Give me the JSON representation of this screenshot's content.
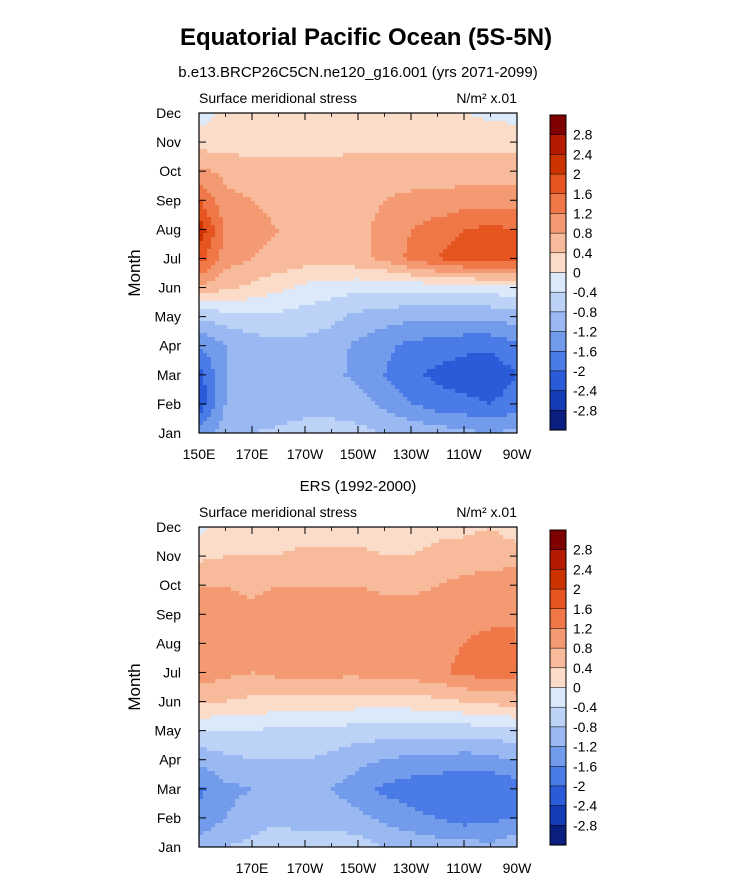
{
  "figure": {
    "title": "Equatorial Pacific Ocean (5S-5N)"
  },
  "colorbar": {
    "levels": [
      "2.8",
      "2.4",
      "2",
      "1.6",
      "1.2",
      "0.8",
      "0.4",
      "0",
      "-0.4",
      "-0.8",
      "-1.2",
      "-1.6",
      "-2",
      "-2.4",
      "-2.8"
    ],
    "colors": [
      "#7f0000",
      "#b31a00",
      "#cc3300",
      "#e6551f",
      "#f07848",
      "#f39a72",
      "#f7bb9c",
      "#fbdcc8",
      "#dbe9fb",
      "#bcd3f7",
      "#9ab8f2",
      "#729bec",
      "#4a7be6",
      "#2a5bd8",
      "#153cb8",
      "#0a1f80"
    ]
  },
  "chart_data": [
    {
      "type": "heatmap",
      "title": "b.e13.BRCP26C5CN.ne120_g16.001 (yrs 2071-2099)",
      "left_label": "Surface meridional stress",
      "units_label": "N/m² x.01",
      "ylabel": "Month",
      "xlabel": "",
      "xticks": [
        "150E",
        "170E",
        "170W",
        "150W",
        "130W",
        "110W",
        "90W"
      ],
      "x": [
        150,
        160,
        170,
        180,
        190,
        200,
        210,
        220,
        230,
        240,
        250,
        260,
        270
      ],
      "y": [
        "Jan",
        "Feb",
        "Mar",
        "Apr",
        "May",
        "Jun",
        "Jul",
        "Aug",
        "Sep",
        "Oct",
        "Nov",
        "Dec"
      ],
      "z": [
        [
          -1.4,
          -1.0,
          -0.8,
          -0.7,
          -0.6,
          -0.6,
          -0.7,
          -0.8,
          -0.9,
          -1.0,
          -1.1,
          -1.2,
          -1.1
        ],
        [
          -2.3,
          -1.2,
          -1.2,
          -1.1,
          -1.0,
          -1.0,
          -1.0,
          -1.3,
          -1.6,
          -1.8,
          -1.9,
          -2.0,
          -1.8
        ],
        [
          -2.2,
          -1.2,
          -1.1,
          -1.1,
          -1.0,
          -1.1,
          -1.3,
          -1.6,
          -1.9,
          -2.1,
          -2.2,
          -2.3,
          -2.0
        ],
        [
          -1.6,
          -1.2,
          -1.0,
          -0.9,
          -0.9,
          -1.0,
          -1.3,
          -1.5,
          -1.7,
          -1.8,
          -1.9,
          -1.9,
          -1.7
        ],
        [
          -0.7,
          -0.6,
          -0.5,
          -0.5,
          -0.6,
          -0.7,
          -0.9,
          -1.0,
          -1.1,
          -1.1,
          -1.1,
          -1.1,
          -1.0
        ],
        [
          0.7,
          0.5,
          0.3,
          0.1,
          -0.1,
          -0.2,
          -0.3,
          -0.3,
          -0.3,
          -0.2,
          -0.2,
          -0.2,
          -0.1
        ],
        [
          1.8,
          1.0,
          0.8,
          0.7,
          0.6,
          0.6,
          0.7,
          0.9,
          1.3,
          1.6,
          1.8,
          1.9,
          1.8
        ],
        [
          2.3,
          1.1,
          0.9,
          0.8,
          0.7,
          0.7,
          0.7,
          0.9,
          1.2,
          1.4,
          1.6,
          1.7,
          1.6
        ],
        [
          1.6,
          0.9,
          0.8,
          0.7,
          0.7,
          0.7,
          0.7,
          0.8,
          0.9,
          0.9,
          1.0,
          1.0,
          1.0
        ],
        [
          0.9,
          0.7,
          0.6,
          0.6,
          0.6,
          0.6,
          0.6,
          0.6,
          0.6,
          0.6,
          0.6,
          0.6,
          0.6
        ],
        [
          0.2,
          0.2,
          0.2,
          0.2,
          0.2,
          0.2,
          0.3,
          0.3,
          0.3,
          0.3,
          0.3,
          0.3,
          0.3
        ],
        [
          -0.2,
          0.1,
          0.1,
          0.1,
          0.1,
          0.1,
          0.1,
          0.1,
          0.1,
          0.1,
          0.0,
          -0.1,
          -0.2
        ]
      ],
      "zlim": [
        -3.2,
        3.2
      ],
      "grid": false
    },
    {
      "type": "heatmap",
      "title": "ERS (1992-2000)",
      "left_label": "Surface meridional stress",
      "units_label": "N/m² x.01",
      "ylabel": "Month",
      "xlabel": "",
      "xticks": [
        "170E",
        "170W",
        "150W",
        "130W",
        "110W",
        "90W"
      ],
      "x": [
        150,
        160,
        170,
        180,
        190,
        200,
        210,
        220,
        230,
        240,
        250,
        260,
        270
      ],
      "y": [
        "Jan",
        "Feb",
        "Mar",
        "Apr",
        "May",
        "Jun",
        "Jul",
        "Aug",
        "Sep",
        "Oct",
        "Nov",
        "Dec"
      ],
      "z": [
        [
          -1.0,
          -0.8,
          -0.7,
          -0.5,
          -0.6,
          -0.5,
          -0.6,
          -0.8,
          -0.9,
          -1.0,
          -1.0,
          -1.1,
          -0.9
        ],
        [
          -1.5,
          -1.2,
          -1.0,
          -0.9,
          -1.0,
          -1.0,
          -1.1,
          -1.3,
          -1.5,
          -1.6,
          -1.8,
          -1.7,
          -1.6
        ],
        [
          -1.7,
          -1.3,
          -1.2,
          -1.1,
          -1.1,
          -1.2,
          -1.4,
          -1.7,
          -1.8,
          -1.9,
          -2.0,
          -2.0,
          -1.8
        ],
        [
          -1.1,
          -0.9,
          -0.8,
          -0.8,
          -0.8,
          -0.9,
          -1.1,
          -1.2,
          -1.3,
          -1.3,
          -1.4,
          -1.3,
          -1.2
        ],
        [
          -0.4,
          -0.4,
          -0.4,
          -0.5,
          -0.5,
          -0.5,
          -0.6,
          -0.6,
          -0.6,
          -0.6,
          -0.6,
          -0.6,
          -0.5
        ],
        [
          0.5,
          0.4,
          0.3,
          0.3,
          0.3,
          0.3,
          0.2,
          0.2,
          0.2,
          0.3,
          0.4,
          0.5,
          0.6
        ],
        [
          1.0,
          0.9,
          0.8,
          0.9,
          0.9,
          0.9,
          0.9,
          1.0,
          1.0,
          1.1,
          1.3,
          1.4,
          1.3
        ],
        [
          1.1,
          0.9,
          0.9,
          1.0,
          1.1,
          1.1,
          1.1,
          1.1,
          1.1,
          1.1,
          1.2,
          1.3,
          1.2
        ],
        [
          1.2,
          1.0,
          0.9,
          1.0,
          1.1,
          1.1,
          1.0,
          1.0,
          1.0,
          1.0,
          1.1,
          1.1,
          1.2
        ],
        [
          0.8,
          0.8,
          0.7,
          0.8,
          0.8,
          0.8,
          0.8,
          0.7,
          0.7,
          0.8,
          0.9,
          1.0,
          1.1
        ],
        [
          0.3,
          0.4,
          0.4,
          0.4,
          0.5,
          0.5,
          0.5,
          0.4,
          0.4,
          0.5,
          0.6,
          0.6,
          0.6
        ],
        [
          -0.1,
          0.1,
          0.1,
          0.2,
          0.2,
          0.2,
          0.2,
          0.2,
          0.2,
          0.3,
          0.3,
          0.4,
          0.2
        ]
      ],
      "zlim": [
        -3.2,
        3.2
      ],
      "grid": false
    }
  ]
}
